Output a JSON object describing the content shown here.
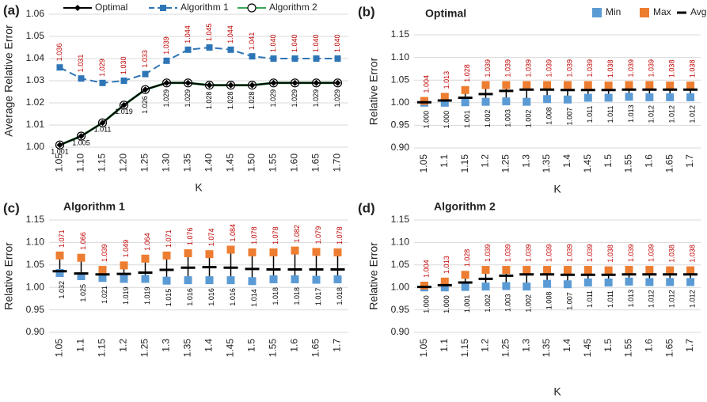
{
  "chart_data": [
    {
      "type": "line",
      "panel_label": "(a)",
      "ylabel": "Average Relative Error",
      "xlabel": "K",
      "categories": [
        "1.05",
        "1.10",
        "1.15",
        "1.20",
        "1.25",
        "1.30",
        "1.35",
        "1.40",
        "1.45",
        "1.50",
        "1.55",
        "1.60",
        "1.65",
        "1.70"
      ],
      "ylim": [
        1,
        1.06
      ],
      "yticks": [
        {
          "value": 1,
          "label": "1.00"
        },
        1.01,
        1.02,
        1.03,
        1.04,
        1.05,
        1.06
      ],
      "grid": true,
      "legend": "top",
      "series": [
        {
          "name": "Optimal",
          "color": "#000000",
          "marker": "diamond",
          "label_color": "#000000",
          "label_position": "below",
          "values": [
            1.001,
            1.005,
            1.011,
            1.019,
            1.026,
            1.029,
            1.029,
            1.028,
            1.028,
            1.028,
            1.029,
            1.029,
            1.029,
            1.029
          ],
          "value_labels": [
            "1.001",
            "1.005",
            "1.011",
            "1.019",
            "1.026",
            "1.029",
            "1.029",
            "1.028",
            "1.028",
            "1.028",
            "1.029",
            "1.029",
            "1.029",
            "1.029"
          ]
        },
        {
          "name": "Algorithm 1",
          "color": "#2e75b6",
          "marker": "square",
          "dash": true,
          "label_color": "#c00000",
          "label_position": "above",
          "values": [
            1.036,
            1.031,
            1.029,
            1.03,
            1.033,
            1.039,
            1.044,
            1.045,
            1.044,
            1.041,
            1.04,
            1.04,
            1.04,
            1.04
          ],
          "value_labels": [
            "1.036",
            "1.031",
            "1.029",
            "1.030",
            "1.033",
            "1.039",
            "1.044",
            "1.045",
            "1.044",
            "1.041",
            "1.040",
            "1.040",
            "1.040",
            "1.040"
          ]
        },
        {
          "name": "Algorithm 2",
          "color": "#3aa656",
          "marker": "circle",
          "values": [
            1.001,
            1.005,
            1.011,
            1.019,
            1.026,
            1.029,
            1.029,
            1.028,
            1.028,
            1.028,
            1.029,
            1.029,
            1.029,
            1.029
          ]
        }
      ]
    },
    {
      "type": "range",
      "panel_label": "(b)",
      "title": "Optimal",
      "ylabel": "Relative Error",
      "xlabel": "K",
      "categories": [
        "1.05",
        "1.1",
        "1.15",
        "1.2",
        "1.25",
        "1.3",
        "1.35",
        "1.4",
        "1.45",
        "1.5",
        "1.55",
        "1.6",
        "1.65",
        "1.7"
      ],
      "ylim": [
        0.9,
        1.15
      ],
      "yticks": [
        {
          "value": 0.9,
          "label": "0.90"
        },
        0.95,
        {
          "value": 1,
          "label": "1.00"
        },
        1.05,
        {
          "value": 1.1,
          "label": "1.10"
        },
        1.15
      ],
      "grid": true,
      "legend": "top-right",
      "series": [
        {
          "name": "Min",
          "color": "#5b9bd5",
          "label_color": "#000000",
          "values": [
            1,
            1,
            1.001,
            1.002,
            1.003,
            1.002,
            1.008,
            1.007,
            1.011,
            1.011,
            1.013,
            1.012,
            1.012,
            1.012
          ],
          "value_labels": [
            "1.000",
            "1.000",
            "1.001",
            "1.002",
            "1.003",
            "1.002",
            "1.008",
            "1.007",
            "1.011",
            "1.011",
            "1.013",
            "1.012",
            "1.012",
            "1.012"
          ]
        },
        {
          "name": "Max",
          "color": "#ed7d31",
          "label_color": "#c00000",
          "values": [
            1.004,
            1.013,
            1.028,
            1.039,
            1.039,
            1.039,
            1.039,
            1.039,
            1.039,
            1.038,
            1.039,
            1.039,
            1.038,
            1.038
          ],
          "value_labels": [
            "1.004",
            "1.013",
            "1.028",
            "1.039",
            "1.039",
            "1.039",
            "1.039",
            "1.039",
            "1.039",
            "1.038",
            "1.039",
            "1.039",
            "1.038",
            "1.038"
          ]
        },
        {
          "name": "Avg",
          "color": "#000000",
          "values": [
            1.001,
            1.005,
            1.011,
            1.019,
            1.026,
            1.029,
            1.029,
            1.028,
            1.028,
            1.028,
            1.029,
            1.029,
            1.029,
            1.029
          ]
        }
      ]
    },
    {
      "type": "range",
      "panel_label": "(c)",
      "title": "Algorithm 1",
      "ylabel": "Relative Error",
      "categories": [
        "1.05",
        "1.1",
        "1.15",
        "1.2",
        "1.25",
        "1.3",
        "1.35",
        "1.4",
        "1.45",
        "1.5",
        "1.55",
        "1.6",
        "1.65",
        "1.7"
      ],
      "ylim": [
        0.9,
        1.15
      ],
      "yticks": [
        {
          "value": 0.9,
          "label": "0.90"
        },
        0.95,
        {
          "value": 1,
          "label": "1.00"
        },
        1.05,
        {
          "value": 1.1,
          "label": "1.10"
        },
        1.15
      ],
      "grid": true,
      "series": [
        {
          "color": "#5b9bd5",
          "label_color": "#000000",
          "values": [
            1.032,
            1.025,
            1.021,
            1.019,
            1.019,
            1.015,
            1.016,
            1.016,
            1.016,
            1.014,
            1.018,
            1.018,
            1.017,
            1.018
          ],
          "value_labels": [
            "1.032",
            "1.025",
            "1.021",
            "1.019",
            "1.019",
            "1.015",
            "1.016",
            "1.016",
            "1.016",
            "1.014",
            "1.018",
            "1.018",
            "1.017",
            "1.018"
          ]
        },
        {
          "color": "#ed7d31",
          "label_color": "#c00000",
          "values": [
            1.071,
            1.066,
            1.039,
            1.049,
            1.064,
            1.071,
            1.076,
            1.074,
            1.084,
            1.078,
            1.078,
            1.082,
            1.079,
            1.078
          ],
          "value_labels": [
            "1.071",
            "1.066",
            "1.039",
            "1.049",
            "1.064",
            "1.071",
            "1.076",
            "1.074",
            "1.084",
            "1.078",
            "1.078",
            "1.082",
            "1.079",
            "1.078"
          ]
        },
        {
          "color": "#000000",
          "values": [
            1.036,
            1.031,
            1.029,
            1.03,
            1.033,
            1.039,
            1.044,
            1.045,
            1.044,
            1.041,
            1.04,
            1.04,
            1.04,
            1.04
          ]
        }
      ]
    },
    {
      "type": "range",
      "panel_label": "(d)",
      "title": "Algorithm 2",
      "ylabel": "Relative Error",
      "xlabel": "K",
      "categories": [
        "1.05",
        "1.1",
        "1.15",
        "1.2",
        "1.25",
        "1.3",
        "1.35",
        "1.4",
        "1.45",
        "1.5",
        "1.55",
        "1.6",
        "1.65",
        "1.7"
      ],
      "ylim": [
        0.9,
        1.15
      ],
      "yticks": [
        {
          "value": 0.9,
          "label": "0.90"
        },
        0.95,
        {
          "value": 1,
          "label": "1.00"
        },
        1.05,
        {
          "value": 1.1,
          "label": "1.10"
        },
        1.15
      ],
      "grid": true,
      "series": [
        {
          "color": "#5b9bd5",
          "label_color": "#000000",
          "values": [
            1,
            1,
            1.001,
            1.002,
            1.003,
            1.002,
            1.008,
            1.007,
            1.011,
            1.011,
            1.013,
            1.012,
            1.012,
            1.012
          ],
          "value_labels": [
            "1.000",
            "1.000",
            "1.001",
            "1.002",
            "1.003",
            "1.002",
            "1.008",
            "1.007",
            "1.011",
            "1.011",
            "1.013",
            "1.012",
            "1.012",
            "1.012"
          ]
        },
        {
          "color": "#ed7d31",
          "label_color": "#c00000",
          "values": [
            1.004,
            1.013,
            1.028,
            1.039,
            1.039,
            1.039,
            1.039,
            1.039,
            1.039,
            1.038,
            1.039,
            1.039,
            1.038,
            1.038
          ],
          "value_labels": [
            "1.004",
            "1.013",
            "1.028",
            "1.039",
            "1.039",
            "1.039",
            "1.039",
            "1.039",
            "1.039",
            "1.038",
            "1.039",
            "1.039",
            "1.038",
            "1.038"
          ]
        },
        {
          "color": "#000000",
          "values": [
            1.001,
            1.005,
            1.011,
            1.019,
            1.026,
            1.029,
            1.029,
            1.028,
            1.028,
            1.028,
            1.029,
            1.029,
            1.029,
            1.029
          ]
        }
      ]
    }
  ]
}
